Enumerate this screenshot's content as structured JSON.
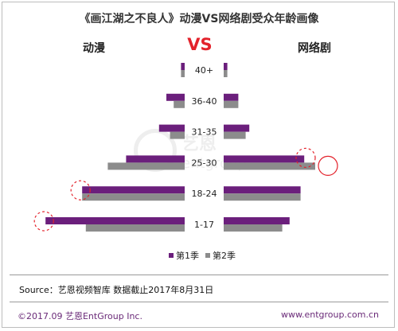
{
  "title": "《画江湖之不良人》动漫VS网络剧受众年龄画像",
  "left_header": "动漫",
  "vs_label": "VS",
  "right_header": "网络剧",
  "watermark": {
    "cn": "艺恩",
    "en": "entgroup"
  },
  "colors": {
    "season1": "#6b1f7c",
    "season2": "#8c8c8c",
    "vs": "#e3222b",
    "circle": "#e3222b"
  },
  "legend": [
    {
      "label": "第1季",
      "color": "#6b1f7c"
    },
    {
      "label": "第2季",
      "color": "#8c8c8c"
    }
  ],
  "source": "Source：艺恩视频智库    数据截止2017年8月31日",
  "footer": {
    "left": "©2017.09  艺恩EntGroup Inc.",
    "right": "www.entgroup.com.cn"
  },
  "chart_data": {
    "type": "bar",
    "orientation": "horizontal-butterfly",
    "categories": [
      "40+",
      "36-40",
      "31-35",
      "25-30",
      "18-24",
      "1-17"
    ],
    "groups": [
      {
        "name": "动漫",
        "series": [
          {
            "name": "第1季",
            "values": [
              1,
              5,
              7,
              16,
              28,
              38
            ]
          },
          {
            "name": "第2季",
            "values": [
              1,
              3,
              4,
              21,
              28,
              27
            ]
          }
        ]
      },
      {
        "name": "网络剧",
        "series": [
          {
            "name": "第1季",
            "values": [
              1,
              4,
              7,
              22,
              21,
              18
            ]
          },
          {
            "name": "第2季",
            "values": [
              1,
              4,
              6,
              25,
              21,
              16
            ]
          }
        ]
      }
    ],
    "highlights": [
      {
        "group": "动漫",
        "category": "18-24",
        "style": "dashed"
      },
      {
        "group": "动漫",
        "category": "1-17",
        "style": "dashed"
      },
      {
        "group": "网络剧",
        "category": "25-30",
        "style": "dashed"
      },
      {
        "group": "网络剧",
        "category": "25-30",
        "style": "solid"
      }
    ]
  }
}
